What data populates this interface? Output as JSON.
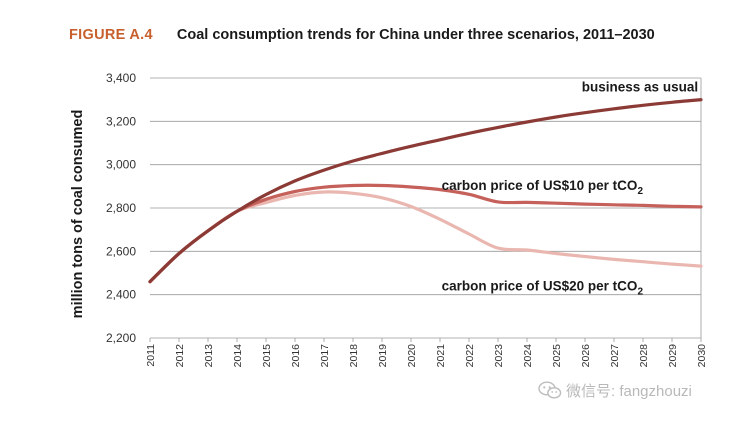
{
  "figure": {
    "label": "FIGURE A.4",
    "title": "Coal consumption trends for China under three scenarios, 2011–2030"
  },
  "watermark": {
    "text": "微信号: fangzhouzi",
    "icon": "wechat-icon"
  },
  "chart_data": {
    "type": "line",
    "title": "Coal consumption trends for China under three scenarios, 2011–2030",
    "xlabel": "",
    "ylabel": "million tons of coal consumed",
    "x": [
      2011,
      2012,
      2013,
      2014,
      2015,
      2016,
      2017,
      2018,
      2019,
      2020,
      2021,
      2022,
      2023,
      2024,
      2025,
      2026,
      2027,
      2028,
      2029,
      2030
    ],
    "ylim": [
      2200,
      3400
    ],
    "yticks": [
      2200,
      2400,
      2600,
      2800,
      3000,
      3200,
      3400
    ],
    "ytick_labels": [
      "2,200",
      "2,400",
      "2,600",
      "2,800",
      "3,000",
      "3,200",
      "3,400"
    ],
    "grid": "horizontal",
    "series": [
      {
        "name": "business as usual",
        "label_text": "business as usual",
        "color": "#8b3a35",
        "values": [
          2460,
          2590,
          2695,
          2785,
          2862,
          2925,
          2975,
          3017,
          3052,
          3085,
          3115,
          3145,
          3172,
          3197,
          3220,
          3240,
          3258,
          3274,
          3288,
          3300
        ]
      },
      {
        "name": "carbon price of US$10 per tCO2",
        "label_text": "carbon price of US$10 per tCO",
        "label_sub": "2",
        "color": "#c5615a",
        "values": [
          2460,
          2590,
          2695,
          2785,
          2840,
          2876,
          2896,
          2904,
          2904,
          2897,
          2885,
          2863,
          2828,
          2826,
          2822,
          2818,
          2815,
          2812,
          2808,
          2805
        ]
      },
      {
        "name": "carbon price of US$20 per tCO2",
        "label_text": "carbon price of US$20 per tCO",
        "label_sub": "2",
        "color": "#eab7b0",
        "values": [
          2460,
          2590,
          2695,
          2785,
          2825,
          2858,
          2874,
          2868,
          2847,
          2807,
          2748,
          2680,
          2615,
          2606,
          2590,
          2576,
          2563,
          2552,
          2541,
          2532
        ]
      }
    ]
  }
}
